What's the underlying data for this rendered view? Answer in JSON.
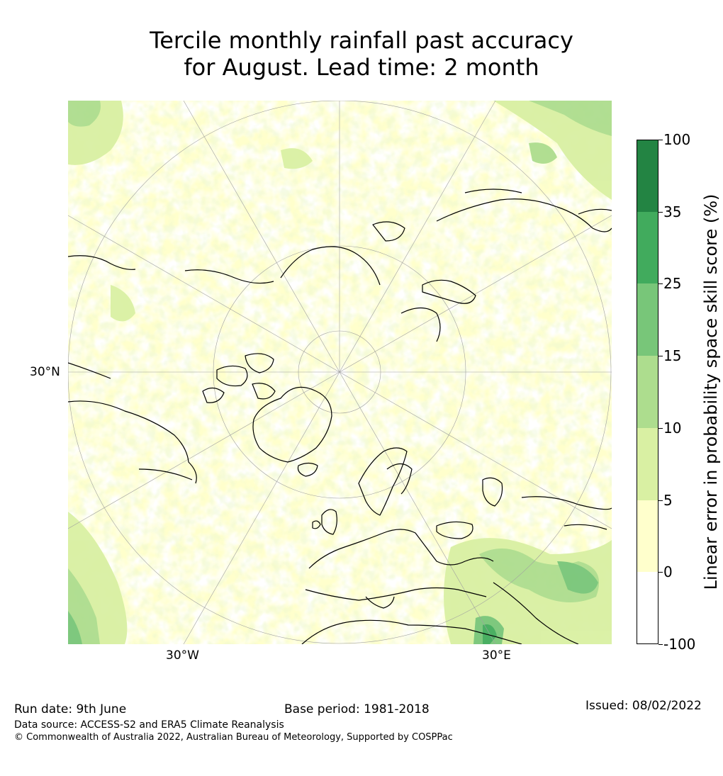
{
  "title": {
    "line1": "Tercile monthly rainfall past accuracy",
    "line2": "for August. Lead time: 2 month"
  },
  "map": {
    "projection": "north-polar-stereographic",
    "graticule_labels": {
      "lat_30n": "30°N",
      "lon_30w": "30°W",
      "lon_30e": "30°E"
    },
    "colors": {
      "background": "#ffffff",
      "land_outline": "#000000",
      "graticule": "#a0a0a0"
    }
  },
  "colorbar": {
    "title": "Linear error in probability space skill score (%)",
    "boundaries": [
      "100",
      "35",
      "25",
      "15",
      "10",
      "5",
      "0",
      "-100"
    ],
    "bins": [
      {
        "range": "35 to 100",
        "color": "#238443"
      },
      {
        "range": "25 to 35",
        "color": "#41ab5d"
      },
      {
        "range": "15 to 25",
        "color": "#78c679"
      },
      {
        "range": "10 to 15",
        "color": "#addd8e"
      },
      {
        "range": "5 to 10",
        "color": "#d9f0a3"
      },
      {
        "range": "0 to 5",
        "color": "#ffffcc"
      },
      {
        "range": "-100 to 0",
        "color": "#ffffff"
      }
    ]
  },
  "footer": {
    "run_date": "Run date: 9th June",
    "base_period": "Base period: 1981-2018",
    "issued": "Issued: 08/02/2022",
    "data_source": "Data source: ACCESS-S2 and ERA5 Climate Reanalysis",
    "copyright": "© Commonwealth of Australia 2022, Australian Bureau of Meteorology, Supported by COSPPac"
  }
}
